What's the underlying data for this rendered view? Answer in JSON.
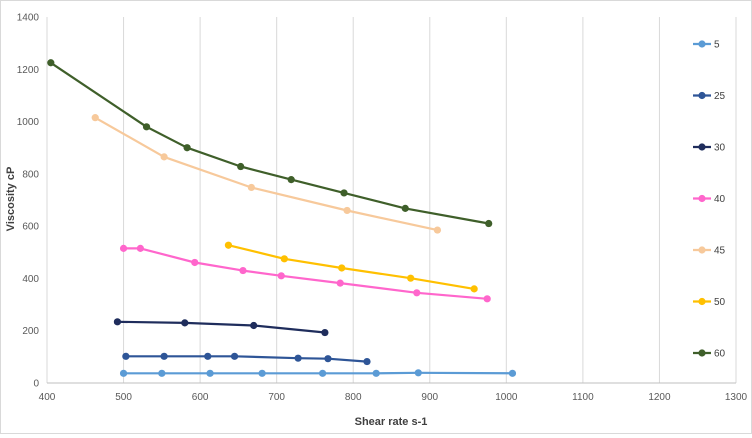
{
  "chart_data": {
    "type": "line",
    "title": "",
    "xlabel": "Shear rate s-1",
    "ylabel": "Viscosity cP",
    "xlim": [
      400,
      1300
    ],
    "ylim": [
      0,
      1400
    ],
    "x_ticks": [
      400,
      500,
      600,
      700,
      800,
      900,
      1000,
      1100,
      1200,
      1300
    ],
    "y_ticks": [
      0,
      200,
      400,
      600,
      800,
      1000,
      1200,
      1400
    ],
    "grid": "vertical",
    "legend_position": "right",
    "series": [
      {
        "name": "5",
        "color": "#5b9bd5",
        "points": [
          [
            500,
            37
          ],
          [
            550,
            37
          ],
          [
            613,
            37
          ],
          [
            681,
            37
          ],
          [
            760,
            37
          ],
          [
            830,
            37
          ],
          [
            885,
            39
          ],
          [
            1008,
            37
          ]
        ]
      },
      {
        "name": "25",
        "color": "#2e5597",
        "points": [
          [
            503,
            102
          ],
          [
            553,
            102
          ],
          [
            610,
            102
          ],
          [
            645,
            102
          ],
          [
            728,
            95
          ],
          [
            767,
            93
          ],
          [
            818,
            82
          ]
        ]
      },
      {
        "name": "30",
        "color": "#1f2d5c",
        "points": [
          [
            492,
            234
          ],
          [
            580,
            230
          ],
          [
            670,
            220
          ],
          [
            763,
            193
          ]
        ]
      },
      {
        "name": "40",
        "color": "#ff66cc",
        "points": [
          [
            500,
            515
          ],
          [
            522,
            515
          ],
          [
            593,
            461
          ],
          [
            656,
            430
          ],
          [
            706,
            410
          ],
          [
            783,
            382
          ],
          [
            883,
            345
          ],
          [
            975,
            322
          ]
        ]
      },
      {
        "name": "45",
        "color": "#f7c99b",
        "points": [
          [
            463,
            1015
          ],
          [
            553,
            865
          ],
          [
            667,
            748
          ],
          [
            792,
            660
          ],
          [
            910,
            585
          ]
        ]
      },
      {
        "name": "50",
        "color": "#ffc000",
        "points": [
          [
            637,
            527
          ],
          [
            710,
            475
          ],
          [
            785,
            440
          ],
          [
            875,
            401
          ],
          [
            958,
            360
          ]
        ]
      },
      {
        "name": "60",
        "color": "#3f5f2a",
        "points": [
          [
            405,
            1225
          ],
          [
            530,
            980
          ],
          [
            583,
            900
          ],
          [
            653,
            828
          ],
          [
            719,
            778
          ],
          [
            788,
            727
          ],
          [
            868,
            668
          ],
          [
            977,
            610
          ]
        ]
      }
    ]
  }
}
